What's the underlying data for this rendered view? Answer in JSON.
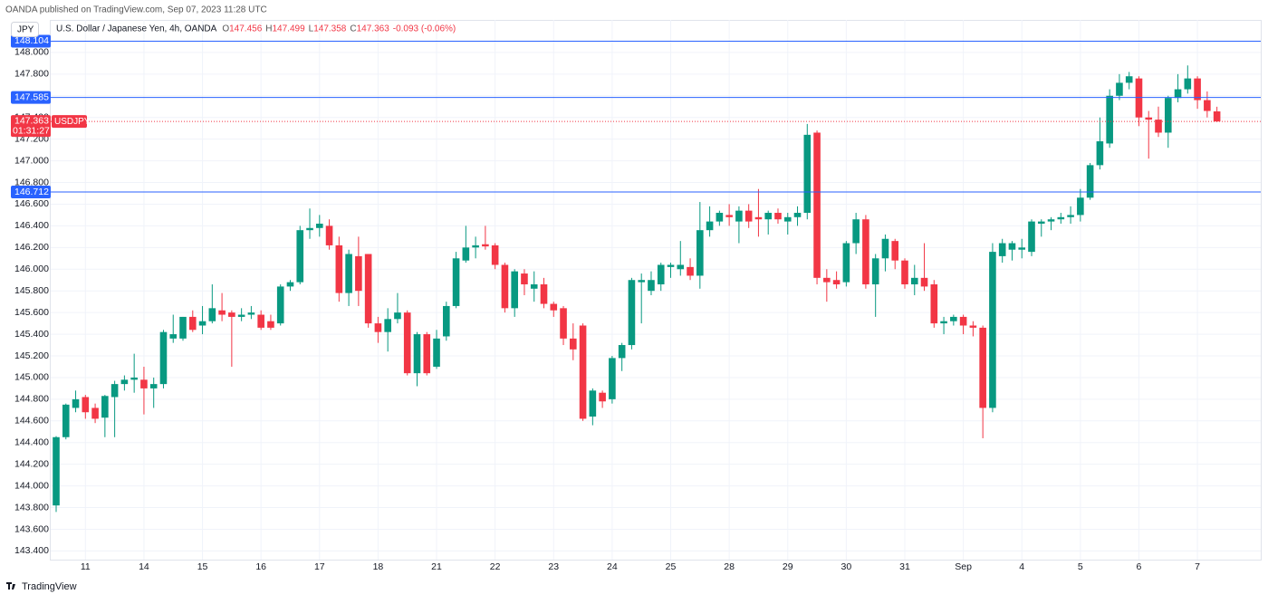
{
  "header": {
    "publisher": "OANDA published on TradingView.com, Sep 07, 2023 11:28 UTC",
    "footer": "TradingView"
  },
  "chart_data": {
    "type": "candlestick",
    "title": "U.S. Dollar / Japanese Yen, 4h, OANDA",
    "currency": "JPY",
    "legend": [
      {
        "label": "O",
        "value": 147.456
      },
      {
        "label": "H",
        "value": 147.499
      },
      {
        "label": "L",
        "value": 147.358
      },
      {
        "label": "C",
        "value": 147.363
      }
    ],
    "change": "-0.093 (-0.06%)",
    "up_color": "#089981",
    "down_color": "#f23645",
    "level_color": "#2962ff",
    "grid": true,
    "levels": [
      148.104,
      147.585,
      146.712
    ],
    "last_price": 147.363,
    "countdown": "01:31:27",
    "symbol": "USDJPY",
    "ylim": [
      143.32,
      148.3
    ],
    "yticks": [
      {
        "value": 143.4,
        "label": "143.400"
      },
      {
        "value": 143.6,
        "label": "143.600"
      },
      {
        "value": 143.8,
        "label": "143.800"
      },
      {
        "value": 144.0,
        "label": "144.000"
      },
      {
        "value": 144.2,
        "label": "144.200"
      },
      {
        "value": 144.4,
        "label": "144.400"
      },
      {
        "value": 144.6,
        "label": "144.600"
      },
      {
        "value": 144.8,
        "label": "144.800"
      },
      {
        "value": 145.0,
        "label": "145.000"
      },
      {
        "value": 145.2,
        "label": "145.200"
      },
      {
        "value": 145.4,
        "label": "145.400"
      },
      {
        "value": 145.6,
        "label": "145.600"
      },
      {
        "value": 145.8,
        "label": "145.800"
      },
      {
        "value": 146.0,
        "label": "146.000"
      },
      {
        "value": 146.2,
        "label": "146.200"
      },
      {
        "value": 146.4,
        "label": "146.400"
      },
      {
        "value": 146.6,
        "label": "146.600"
      },
      {
        "value": 146.8,
        "label": "146.800"
      },
      {
        "value": 147.0,
        "label": "147.000"
      },
      {
        "value": 147.2,
        "label": "147.200"
      },
      {
        "value": 147.4,
        "label": "147.400"
      },
      {
        "value": 147.6,
        "label": "147.600"
      },
      {
        "value": 147.8,
        "label": "147.800"
      },
      {
        "value": 148.0,
        "label": "148.000"
      }
    ],
    "categories": [
      null,
      null,
      null,
      "11",
      null,
      null,
      null,
      null,
      null,
      "14",
      null,
      null,
      null,
      null,
      null,
      "15",
      null,
      null,
      null,
      null,
      null,
      "16",
      null,
      null,
      null,
      null,
      null,
      "17",
      null,
      null,
      null,
      null,
      null,
      "18",
      null,
      null,
      null,
      null,
      null,
      "21",
      null,
      null,
      null,
      null,
      null,
      "22",
      null,
      null,
      null,
      null,
      null,
      "23",
      null,
      null,
      null,
      null,
      null,
      "24",
      null,
      null,
      null,
      null,
      null,
      "25",
      null,
      null,
      null,
      null,
      null,
      "28",
      null,
      null,
      null,
      null,
      null,
      "29",
      null,
      null,
      null,
      null,
      null,
      "30",
      null,
      null,
      null,
      null,
      null,
      "31",
      null,
      null,
      null,
      null,
      null,
      "Sep",
      null,
      null,
      null,
      null,
      null,
      "4",
      null,
      null,
      null,
      null,
      null,
      "5",
      null,
      null,
      null,
      null,
      null,
      "6",
      null,
      null,
      null,
      null,
      null,
      "7",
      null,
      null
    ],
    "open": [
      143.82,
      144.45,
      144.72,
      144.82,
      144.72,
      144.63,
      144.82,
      144.94,
      144.98,
      144.98,
      144.9,
      144.94,
      145.36,
      145.36,
      145.56,
      145.48,
      145.52,
      145.62,
      145.6,
      145.56,
      145.58,
      145.58,
      145.52,
      145.5,
      145.84,
      145.88,
      146.36,
      146.38,
      146.4,
      146.22,
      145.78,
      146.12,
      146.14,
      145.5,
      145.42,
      145.54,
      145.6,
      145.04,
      145.4,
      145.1,
      145.38,
      145.66,
      146.08,
      146.2,
      146.23,
      146.22,
      146.04,
      145.64,
      145.96,
      145.82,
      145.86,
      145.68,
      145.64,
      145.36,
      145.48,
      144.64,
      144.86,
      144.8,
      145.18,
      145.3,
      145.88,
      145.8,
      145.86,
      146.02,
      146.0,
      146.02,
      145.94,
      146.36,
      146.44,
      146.5,
      146.44,
      146.54,
      146.48,
      146.46,
      146.52,
      146.44,
      146.48,
      146.52,
      147.26,
      145.92,
      145.9,
      145.88,
      146.24,
      146.46,
      145.86,
      146.1,
      146.26,
      146.08,
      145.86,
      145.92,
      145.86,
      145.5,
      145.52,
      145.56,
      145.48,
      145.46,
      144.72,
      146.12,
      146.18,
      146.18,
      146.16,
      146.42,
      146.44,
      146.46,
      146.48,
      146.5,
      146.66,
      146.96,
      147.16,
      147.6,
      147.72,
      147.76,
      147.4,
      147.38,
      147.26,
      147.58,
      147.66,
      147.76,
      147.56,
      147.456
    ],
    "high": [
      144.46,
      144.76,
      144.88,
      144.84,
      144.76,
      144.84,
      144.97,
      145.02,
      145.22,
      145.1,
      145.0,
      145.44,
      145.58,
      145.56,
      145.62,
      145.66,
      145.86,
      145.78,
      145.62,
      145.64,
      145.66,
      145.62,
      145.58,
      145.86,
      145.9,
      146.4,
      146.56,
      146.5,
      146.46,
      146.3,
      146.18,
      146.3,
      146.14,
      145.56,
      145.64,
      145.78,
      145.62,
      145.42,
      145.42,
      145.44,
      145.7,
      146.16,
      146.4,
      146.3,
      146.4,
      146.24,
      146.06,
      146.0,
      146.0,
      145.98,
      145.92,
      145.7,
      145.66,
      145.5,
      145.5,
      144.9,
      144.88,
      145.2,
      145.32,
      145.92,
      145.96,
      145.98,
      146.06,
      146.06,
      146.26,
      146.1,
      146.62,
      146.58,
      146.54,
      146.6,
      146.58,
      146.6,
      146.74,
      146.54,
      146.56,
      146.52,
      146.58,
      147.34,
      147.28,
      146.0,
      145.98,
      146.26,
      146.52,
      146.5,
      146.14,
      146.32,
      146.28,
      146.1,
      146.04,
      146.24,
      145.9,
      145.56,
      145.58,
      145.58,
      145.52,
      145.48,
      146.24,
      146.28,
      146.26,
      146.28,
      146.46,
      146.46,
      146.48,
      146.52,
      146.58,
      146.74,
      146.98,
      147.4,
      147.66,
      147.8,
      147.82,
      147.78,
      147.46,
      147.5,
      147.6,
      147.8,
      147.88,
      147.78,
      147.64,
      147.499
    ],
    "low": [
      143.76,
      144.43,
      144.68,
      144.62,
      144.58,
      144.45,
      144.45,
      144.88,
      144.86,
      144.66,
      144.72,
      144.9,
      145.32,
      145.34,
      145.42,
      145.4,
      145.5,
      145.52,
      145.1,
      145.52,
      145.54,
      145.44,
      145.44,
      145.48,
      145.8,
      145.86,
      146.28,
      146.3,
      146.18,
      145.7,
      145.66,
      145.66,
      145.46,
      145.32,
      145.24,
      145.5,
      145.02,
      144.92,
      145.02,
      145.08,
      145.34,
      145.64,
      146.06,
      146.1,
      146.18,
      146.0,
      145.6,
      145.56,
      145.76,
      145.7,
      145.64,
      145.56,
      145.3,
      145.16,
      144.6,
      144.56,
      144.72,
      144.76,
      145.06,
      145.26,
      145.5,
      145.76,
      145.8,
      145.92,
      145.94,
      145.9,
      145.82,
      146.3,
      146.4,
      146.4,
      146.24,
      146.38,
      146.3,
      146.32,
      146.42,
      146.32,
      146.4,
      146.46,
      145.86,
      145.7,
      145.82,
      145.84,
      146.14,
      145.82,
      145.56,
      145.98,
      146.0,
      145.82,
      145.76,
      145.8,
      145.46,
      145.4,
      145.48,
      145.4,
      145.38,
      144.44,
      144.68,
      146.06,
      146.08,
      146.1,
      146.12,
      146.3,
      146.36,
      146.42,
      146.42,
      146.44,
      146.64,
      146.92,
      147.12,
      147.56,
      147.66,
      147.32,
      147.02,
      147.22,
      147.12,
      147.54,
      147.62,
      147.48,
      147.4,
      147.358
    ],
    "close": [
      144.45,
      144.75,
      144.8,
      144.68,
      144.62,
      144.83,
      144.94,
      144.98,
      145.0,
      144.9,
      144.94,
      145.42,
      145.4,
      145.56,
      145.44,
      145.52,
      145.64,
      145.58,
      145.56,
      145.58,
      145.6,
      145.46,
      145.46,
      145.84,
      145.88,
      146.36,
      146.38,
      146.42,
      146.22,
      145.78,
      146.14,
      145.8,
      145.5,
      145.42,
      145.54,
      145.6,
      145.04,
      145.4,
      145.04,
      145.36,
      145.66,
      146.1,
      146.2,
      146.22,
      146.21,
      146.04,
      145.64,
      145.98,
      145.86,
      145.86,
      145.68,
      145.62,
      145.36,
      145.26,
      144.62,
      144.88,
      144.78,
      145.18,
      145.3,
      145.9,
      145.9,
      145.9,
      146.04,
      146.04,
      146.04,
      145.94,
      146.36,
      146.44,
      146.52,
      146.48,
      146.54,
      146.44,
      146.46,
      146.52,
      146.46,
      146.48,
      146.52,
      147.24,
      145.92,
      145.88,
      145.86,
      146.24,
      146.46,
      145.86,
      146.1,
      146.28,
      146.08,
      145.86,
      145.92,
      145.84,
      145.5,
      145.52,
      145.56,
      145.48,
      145.46,
      144.72,
      146.16,
      146.24,
      146.24,
      146.2,
      146.44,
      146.44,
      146.46,
      146.48,
      146.5,
      146.66,
      146.96,
      147.18,
      147.6,
      147.72,
      147.78,
      147.4,
      147.38,
      147.26,
      147.58,
      147.66,
      147.76,
      147.56,
      147.46,
      147.363
    ]
  }
}
